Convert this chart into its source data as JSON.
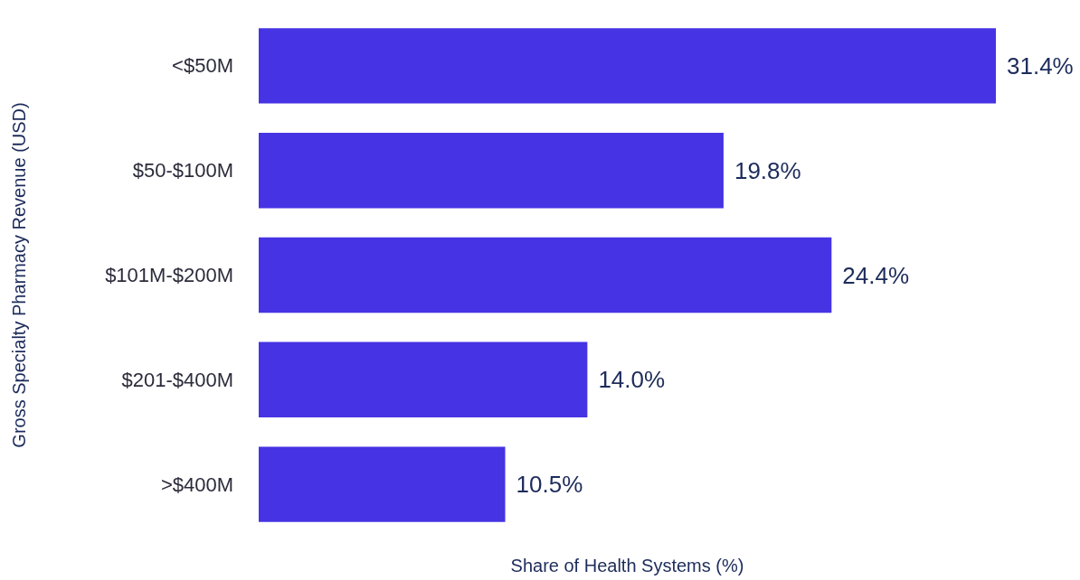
{
  "chart_data": {
    "type": "bar",
    "orientation": "horizontal",
    "xlabel": "Share of Health Systems (%)",
    "ylabel": "Gross Specialty Pharmacy Revenue (USD)",
    "categories": [
      "<$50M",
      "$50-$100M",
      "$101M-$200M",
      "$201-$400M",
      ">$400M"
    ],
    "values": [
      31.4,
      19.8,
      24.4,
      14.0,
      10.5
    ],
    "value_labels": [
      "31.4%",
      "19.8%",
      "24.4%",
      "14.0%",
      "10.5%"
    ],
    "color": "#4633e3",
    "xlim": [
      0,
      31.4
    ],
    "grid": false
  }
}
